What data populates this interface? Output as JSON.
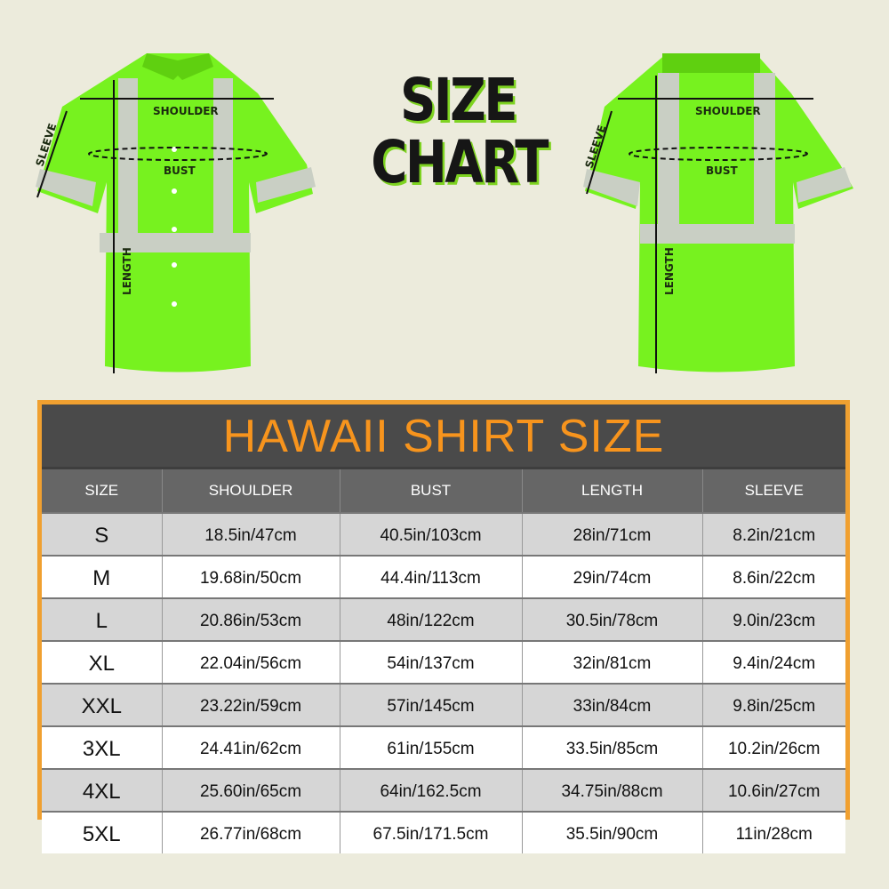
{
  "heading": {
    "line1": "SIZE",
    "line2": "CHART"
  },
  "front_shirt": {
    "shoulder": "SHOULDER",
    "bust": "BUST",
    "sleeve": "SLEEVE",
    "length": "LENGTH"
  },
  "back_shirt": {
    "shoulder": "SHOULDER",
    "bust": "BUST",
    "sleeve": "SLEEVE",
    "length": "LENGTH"
  },
  "colors": {
    "shirt": "#77f21f",
    "reflective": "#c9cfc4",
    "table_border": "#f0a030",
    "title_text": "#f7941d",
    "title_bar": "#4a4a4a"
  },
  "table": {
    "title": "HAWAII SHIRT SIZE",
    "headers": [
      "SIZE",
      "SHOULDER",
      "BUST",
      "LENGTH",
      "SLEEVE"
    ],
    "rows": [
      [
        "S",
        "18.5in/47cm",
        "40.5in/103cm",
        "28in/71cm",
        "8.2in/21cm"
      ],
      [
        "M",
        "19.68in/50cm",
        "44.4in/113cm",
        "29in/74cm",
        "8.6in/22cm"
      ],
      [
        "L",
        "20.86in/53cm",
        "48in/122cm",
        "30.5in/78cm",
        "9.0in/23cm"
      ],
      [
        "XL",
        "22.04in/56cm",
        "54in/137cm",
        "32in/81cm",
        "9.4in/24cm"
      ],
      [
        "XXL",
        "23.22in/59cm",
        "57in/145cm",
        "33in/84cm",
        "9.8in/25cm"
      ],
      [
        "3XL",
        "24.41in/62cm",
        "61in/155cm",
        "33.5in/85cm",
        "10.2in/26cm"
      ],
      [
        "4XL",
        "25.60in/65cm",
        "64in/162.5cm",
        "34.75in/88cm",
        "10.6in/27cm"
      ],
      [
        "5XL",
        "26.77in/68cm",
        "67.5in/171.5cm",
        "35.5in/90cm",
        "11in/28cm"
      ]
    ]
  }
}
